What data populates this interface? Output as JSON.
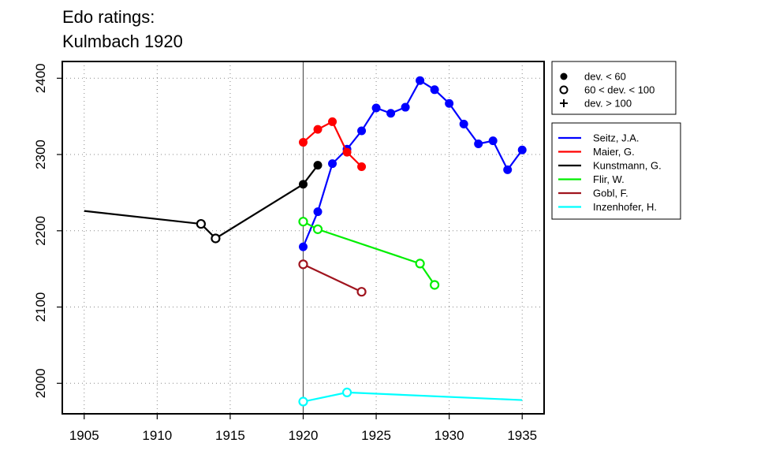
{
  "title": [
    "Edo ratings:",
    "Kulmbach 1920"
  ],
  "chart_data": {
    "type": "line",
    "xlim": [
      1903.5,
      1936.5
    ],
    "ylim": [
      1960,
      2422
    ],
    "x_ticks": [
      1905,
      1910,
      1915,
      1920,
      1925,
      1930,
      1935
    ],
    "y_ticks": [
      2000,
      2100,
      2200,
      2300,
      2400
    ],
    "grid": "dotted",
    "reference_year": 1920,
    "deviation_legend": [
      {
        "label": "dev. < 60",
        "marker": "filled"
      },
      {
        "label": "60 < dev. < 100",
        "marker": "open"
      },
      {
        "label": "dev. > 100",
        "marker": "plus"
      }
    ],
    "series": [
      {
        "name": "Seitz, J.A.",
        "color": "#0000ff",
        "points": [
          [
            1920,
            2179,
            "filled"
          ],
          [
            1921,
            2225,
            "filled"
          ],
          [
            1922,
            2288,
            "filled"
          ],
          [
            1923,
            2307,
            "filled"
          ],
          [
            1924,
            2331,
            "filled"
          ],
          [
            1925,
            2361,
            "filled"
          ],
          [
            1926,
            2354,
            "filled"
          ],
          [
            1927,
            2362,
            "filled"
          ],
          [
            1928,
            2397,
            "filled"
          ],
          [
            1929,
            2385,
            "filled"
          ],
          [
            1930,
            2367,
            "filled"
          ],
          [
            1931,
            2340,
            "filled"
          ],
          [
            1932,
            2314,
            "filled"
          ],
          [
            1933,
            2318,
            "filled"
          ],
          [
            1934,
            2280,
            "filled"
          ],
          [
            1935,
            2306,
            "filled"
          ]
        ]
      },
      {
        "name": "Maier, G.",
        "color": "#ff0000",
        "points": [
          [
            1920,
            2316,
            "filled"
          ],
          [
            1921,
            2333,
            "filled"
          ],
          [
            1922,
            2343,
            "filled"
          ],
          [
            1923,
            2303,
            "filled"
          ],
          [
            1924,
            2284,
            "filled"
          ]
        ]
      },
      {
        "name": "Kunstmann, G.",
        "color": "#000000",
        "points": [
          [
            1905,
            2226,
            "none"
          ],
          [
            1913,
            2209,
            "open"
          ],
          [
            1914,
            2190,
            "open"
          ],
          [
            1920,
            2261,
            "filled"
          ],
          [
            1921,
            2286,
            "filled"
          ]
        ]
      },
      {
        "name": "Flir, W.",
        "color": "#00ee00",
        "points": [
          [
            1920,
            2212,
            "open"
          ],
          [
            1921,
            2202,
            "open"
          ],
          [
            1928,
            2157,
            "open"
          ],
          [
            1929,
            2129,
            "open"
          ]
        ]
      },
      {
        "name": "Gobl, F.",
        "color": "#a0141e",
        "points": [
          [
            1920,
            2156,
            "open"
          ],
          [
            1924,
            2120,
            "open"
          ]
        ]
      },
      {
        "name": "Inzenhofer, H.",
        "color": "#00ffff",
        "points": [
          [
            1920,
            1976,
            "open"
          ],
          [
            1923,
            1988,
            "open"
          ],
          [
            1935,
            1978,
            "none"
          ]
        ]
      }
    ]
  }
}
